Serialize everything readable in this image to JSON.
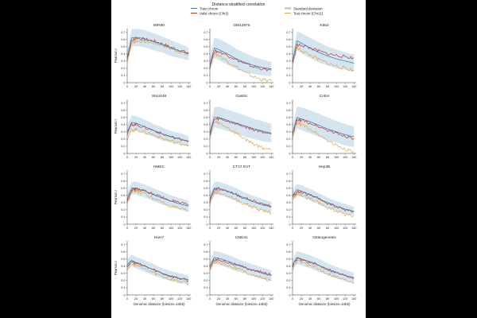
{
  "title": "Distance stratified correlation",
  "legend": {
    "entries": [
      {
        "label": "Train chrom",
        "color": "#3a6fb0",
        "type": "line"
      },
      {
        "label": "Valid chrom (Chr2)",
        "color": "#c0392b",
        "type": "line"
      },
      {
        "label": "Standard deviation",
        "color": "#bcd6e6",
        "type": "band"
      },
      {
        "label": "Test chrom (Chr11)",
        "color": "#e0a84a",
        "type": "line"
      }
    ]
  },
  "colors": {
    "train": "#3a6fb0",
    "valid": "#c0392b",
    "test": "#e0a84a",
    "band": "#cfe2ee"
  },
  "axis_ticks": {
    "x": [
      "0",
      "20",
      "40",
      "60",
      "80",
      "100",
      "120",
      "140"
    ],
    "y": [
      "0",
      "0.1",
      "0.2",
      "0.3",
      "0.4",
      "0.5",
      "0.6",
      "0.7"
    ]
  },
  "ylabel": "Pearson r",
  "xlabel": "Genomic distance (binsize=10kb)",
  "chart_data": [
    {
      "type": "line",
      "title": "IMR90",
      "xlim": [
        0,
        145
      ],
      "ylim": [
        0,
        0.75
      ],
      "x": [
        0,
        10,
        20,
        40,
        60,
        80,
        100,
        120,
        140
      ],
      "series": [
        {
          "name": "Train chrom",
          "values": [
            0.35,
            0.62,
            0.63,
            0.61,
            0.57,
            0.53,
            0.48,
            0.44,
            0.4
          ]
        },
        {
          "name": "Valid chrom (Chr2)",
          "values": [
            0.33,
            0.58,
            0.62,
            0.6,
            0.58,
            0.54,
            0.49,
            0.45,
            0.41
          ]
        },
        {
          "name": "Test chrom (Chr11)",
          "values": [
            0.3,
            0.55,
            0.58,
            0.57,
            0.55,
            0.52,
            0.47,
            0.43,
            0.38
          ]
        },
        {
          "name": "Standard deviation",
          "values": [
            0.1,
            0.12,
            0.12,
            0.12,
            0.12,
            0.11,
            0.11,
            0.1,
            0.09
          ]
        }
      ]
    },
    {
      "type": "line",
      "title": "GM12878",
      "xlim": [
        0,
        145
      ],
      "ylim": [
        0,
        0.75
      ],
      "x": [
        0,
        10,
        20,
        40,
        60,
        80,
        100,
        120,
        140
      ],
      "series": [
        {
          "name": "Train chrom",
          "values": [
            0.25,
            0.48,
            0.46,
            0.4,
            0.33,
            0.28,
            0.24,
            0.21,
            0.19
          ]
        },
        {
          "name": "Valid chrom (Chr2)",
          "values": [
            0.22,
            0.44,
            0.43,
            0.38,
            0.32,
            0.26,
            0.22,
            0.19,
            0.17
          ]
        },
        {
          "name": "Test chrom (Chr11)",
          "values": [
            0.22,
            0.4,
            0.38,
            0.3,
            0.22,
            0.14,
            0.08,
            0.04,
            0.02
          ]
        },
        {
          "name": "Standard deviation",
          "values": [
            0.1,
            0.14,
            0.15,
            0.15,
            0.14,
            0.13,
            0.12,
            0.11,
            0.1
          ]
        }
      ]
    },
    {
      "type": "line",
      "title": "K562",
      "xlim": [
        0,
        145
      ],
      "ylim": [
        0,
        0.75
      ],
      "x": [
        0,
        10,
        20,
        40,
        60,
        80,
        100,
        120,
        140
      ],
      "series": [
        {
          "name": "Train chrom",
          "values": [
            0.3,
            0.58,
            0.55,
            0.48,
            0.42,
            0.37,
            0.33,
            0.3,
            0.27
          ]
        },
        {
          "name": "Valid chrom (Chr2)",
          "values": [
            0.28,
            0.52,
            0.52,
            0.48,
            0.44,
            0.4,
            0.38,
            0.36,
            0.34
          ]
        },
        {
          "name": "Test chrom (Chr11)",
          "values": [
            0.26,
            0.48,
            0.45,
            0.38,
            0.32,
            0.27,
            0.23,
            0.2,
            0.17
          ]
        },
        {
          "name": "Standard deviation",
          "values": [
            0.1,
            0.13,
            0.14,
            0.14,
            0.14,
            0.13,
            0.13,
            0.12,
            0.12
          ]
        }
      ]
    },
    {
      "type": "line",
      "title": "SNU449",
      "xlim": [
        0,
        145
      ],
      "ylim": [
        0,
        0.75
      ],
      "x": [
        0,
        10,
        20,
        40,
        60,
        80,
        100,
        120,
        140
      ],
      "series": [
        {
          "name": "Train chrom",
          "values": [
            0.3,
            0.43,
            0.42,
            0.37,
            0.32,
            0.27,
            0.23,
            0.2,
            0.17
          ]
        },
        {
          "name": "Valid chrom (Chr2)",
          "values": [
            0.28,
            0.4,
            0.4,
            0.36,
            0.32,
            0.27,
            0.23,
            0.2,
            0.18
          ]
        },
        {
          "name": "Test chrom (Chr11)",
          "values": [
            0.2,
            0.32,
            0.33,
            0.3,
            0.26,
            0.21,
            0.17,
            0.14,
            0.12
          ]
        },
        {
          "name": "Standard deviation",
          "values": [
            0.08,
            0.1,
            0.1,
            0.1,
            0.09,
            0.09,
            0.08,
            0.08,
            0.07
          ]
        }
      ]
    },
    {
      "type": "line",
      "title": "Gastric",
      "xlim": [
        0,
        145
      ],
      "ylim": [
        0,
        0.75
      ],
      "x": [
        0,
        10,
        20,
        40,
        60,
        80,
        100,
        120,
        140
      ],
      "series": [
        {
          "name": "Train chrom",
          "values": [
            0.28,
            0.5,
            0.5,
            0.46,
            0.42,
            0.38,
            0.34,
            0.31,
            0.28
          ]
        },
        {
          "name": "Valid chrom (Chr2)",
          "values": [
            0.26,
            0.47,
            0.48,
            0.45,
            0.41,
            0.37,
            0.33,
            0.3,
            0.27
          ]
        },
        {
          "name": "Test chrom (Chr11)",
          "values": [
            0.24,
            0.44,
            0.42,
            0.36,
            0.28,
            0.2,
            0.13,
            0.08,
            0.05
          ]
        },
        {
          "name": "Standard deviation",
          "values": [
            0.1,
            0.14,
            0.15,
            0.15,
            0.15,
            0.15,
            0.14,
            0.14,
            0.13
          ]
        }
      ]
    },
    {
      "type": "line",
      "title": "Colon",
      "xlim": [
        0,
        145
      ],
      "ylim": [
        0,
        0.75
      ],
      "x": [
        0,
        10,
        20,
        40,
        60,
        80,
        100,
        120,
        140
      ],
      "series": [
        {
          "name": "Train chrom",
          "values": [
            0.28,
            0.5,
            0.48,
            0.44,
            0.39,
            0.34,
            0.3,
            0.26,
            0.23
          ]
        },
        {
          "name": "Valid chrom (Chr2)",
          "values": [
            0.26,
            0.46,
            0.46,
            0.42,
            0.37,
            0.32,
            0.28,
            0.24,
            0.21
          ]
        },
        {
          "name": "Test chrom (Chr11)",
          "values": [
            0.24,
            0.42,
            0.4,
            0.34,
            0.26,
            0.18,
            0.11,
            0.06,
            0.03
          ]
        },
        {
          "name": "Standard deviation",
          "values": [
            0.1,
            0.15,
            0.16,
            0.16,
            0.16,
            0.16,
            0.15,
            0.15,
            0.14
          ]
        }
      ]
    },
    {
      "type": "line",
      "title": "HMEC",
      "xlim": [
        0,
        145
      ],
      "ylim": [
        0,
        0.75
      ],
      "x": [
        0,
        10,
        20,
        40,
        60,
        80,
        100,
        120,
        140
      ],
      "series": [
        {
          "name": "Train chrom",
          "values": [
            0.35,
            0.5,
            0.5,
            0.46,
            0.41,
            0.36,
            0.32,
            0.28,
            0.25
          ]
        },
        {
          "name": "Valid chrom (Chr2)",
          "values": [
            0.32,
            0.48,
            0.49,
            0.46,
            0.42,
            0.37,
            0.33,
            0.29,
            0.27
          ]
        },
        {
          "name": "Test chrom (Chr11)",
          "values": [
            0.3,
            0.46,
            0.46,
            0.42,
            0.36,
            0.3,
            0.25,
            0.21,
            0.18
          ]
        },
        {
          "name": "Standard deviation",
          "values": [
            0.08,
            0.09,
            0.09,
            0.09,
            0.09,
            0.09,
            0.08,
            0.08,
            0.08
          ]
        }
      ]
    },
    {
      "type": "line",
      "title": "CT27 EVT",
      "xlim": [
        0,
        145
      ],
      "ylim": [
        0,
        0.75
      ],
      "x": [
        0,
        10,
        20,
        40,
        60,
        80,
        100,
        120,
        140
      ],
      "series": [
        {
          "name": "Train chrom",
          "values": [
            0.35,
            0.5,
            0.5,
            0.46,
            0.41,
            0.36,
            0.31,
            0.27,
            0.24
          ]
        },
        {
          "name": "Valid chrom (Chr2)",
          "values": [
            0.32,
            0.48,
            0.49,
            0.46,
            0.41,
            0.36,
            0.32,
            0.28,
            0.25
          ]
        },
        {
          "name": "Test chrom (Chr11)",
          "values": [
            0.28,
            0.44,
            0.44,
            0.4,
            0.34,
            0.28,
            0.23,
            0.19,
            0.16
          ]
        },
        {
          "name": "Standard deviation",
          "values": [
            0.08,
            0.09,
            0.09,
            0.09,
            0.09,
            0.08,
            0.08,
            0.08,
            0.07
          ]
        }
      ]
    },
    {
      "type": "line",
      "title": "Hep3B",
      "xlim": [
        0,
        145
      ],
      "ylim": [
        0,
        0.75
      ],
      "x": [
        0,
        10,
        20,
        40,
        60,
        80,
        100,
        120,
        140
      ],
      "series": [
        {
          "name": "Train chrom",
          "values": [
            0.4,
            0.48,
            0.46,
            0.41,
            0.35,
            0.3,
            0.25,
            0.21,
            0.18
          ]
        },
        {
          "name": "Valid chrom (Chr2)",
          "values": [
            0.37,
            0.45,
            0.44,
            0.4,
            0.35,
            0.29,
            0.24,
            0.2,
            0.17
          ]
        },
        {
          "name": "Test chrom (Chr11)",
          "values": [
            0.34,
            0.42,
            0.4,
            0.35,
            0.29,
            0.23,
            0.18,
            0.14,
            0.11
          ]
        },
        {
          "name": "Standard deviation",
          "values": [
            0.07,
            0.08,
            0.08,
            0.08,
            0.08,
            0.07,
            0.07,
            0.07,
            0.06
          ]
        }
      ]
    },
    {
      "type": "line",
      "title": "HuH7",
      "xlim": [
        0,
        145
      ],
      "ylim": [
        0,
        0.75
      ],
      "x": [
        0,
        10,
        20,
        40,
        60,
        80,
        100,
        120,
        140
      ],
      "series": [
        {
          "name": "Train chrom",
          "values": [
            0.42,
            0.48,
            0.45,
            0.4,
            0.35,
            0.3,
            0.26,
            0.23,
            0.21
          ]
        },
        {
          "name": "Valid chrom (Chr2)",
          "values": [
            0.4,
            0.46,
            0.44,
            0.4,
            0.35,
            0.3,
            0.26,
            0.23,
            0.2
          ]
        },
        {
          "name": "Test chrom (Chr11)",
          "values": [
            0.36,
            0.43,
            0.41,
            0.36,
            0.31,
            0.26,
            0.22,
            0.19,
            0.16
          ]
        },
        {
          "name": "Standard deviation",
          "values": [
            0.07,
            0.08,
            0.08,
            0.08,
            0.08,
            0.07,
            0.07,
            0.07,
            0.06
          ]
        }
      ]
    },
    {
      "type": "line",
      "title": "DND41",
      "xlim": [
        0,
        145
      ],
      "ylim": [
        0,
        0.75
      ],
      "x": [
        0,
        10,
        20,
        40,
        60,
        80,
        100,
        120,
        140
      ],
      "series": [
        {
          "name": "Train chrom",
          "values": [
            0.4,
            0.52,
            0.51,
            0.47,
            0.42,
            0.38,
            0.34,
            0.3,
            0.27
          ]
        },
        {
          "name": "Valid chrom (Chr2)",
          "values": [
            0.38,
            0.49,
            0.49,
            0.46,
            0.42,
            0.38,
            0.34,
            0.31,
            0.28
          ]
        },
        {
          "name": "Test chrom (Chr11)",
          "values": [
            0.35,
            0.46,
            0.46,
            0.42,
            0.37,
            0.32,
            0.27,
            0.23,
            0.2
          ]
        },
        {
          "name": "Standard deviation",
          "values": [
            0.07,
            0.09,
            0.09,
            0.09,
            0.09,
            0.08,
            0.08,
            0.08,
            0.07
          ]
        }
      ]
    },
    {
      "type": "line",
      "title": "Osteogenesis",
      "xlim": [
        0,
        145
      ],
      "ylim": [
        0,
        0.75
      ],
      "x": [
        0,
        10,
        20,
        40,
        60,
        80,
        100,
        120,
        140
      ],
      "series": [
        {
          "name": "Train chrom",
          "values": [
            0.42,
            0.52,
            0.5,
            0.46,
            0.41,
            0.36,
            0.31,
            0.27,
            0.24
          ]
        },
        {
          "name": "Valid chrom (Chr2)",
          "values": [
            0.4,
            0.5,
            0.49,
            0.45,
            0.41,
            0.36,
            0.31,
            0.27,
            0.24
          ]
        },
        {
          "name": "Test chrom (Chr11)",
          "values": [
            0.36,
            0.47,
            0.46,
            0.41,
            0.36,
            0.3,
            0.25,
            0.21,
            0.18
          ]
        },
        {
          "name": "Standard deviation",
          "values": [
            0.07,
            0.09,
            0.09,
            0.09,
            0.09,
            0.08,
            0.08,
            0.08,
            0.07
          ]
        }
      ]
    }
  ]
}
